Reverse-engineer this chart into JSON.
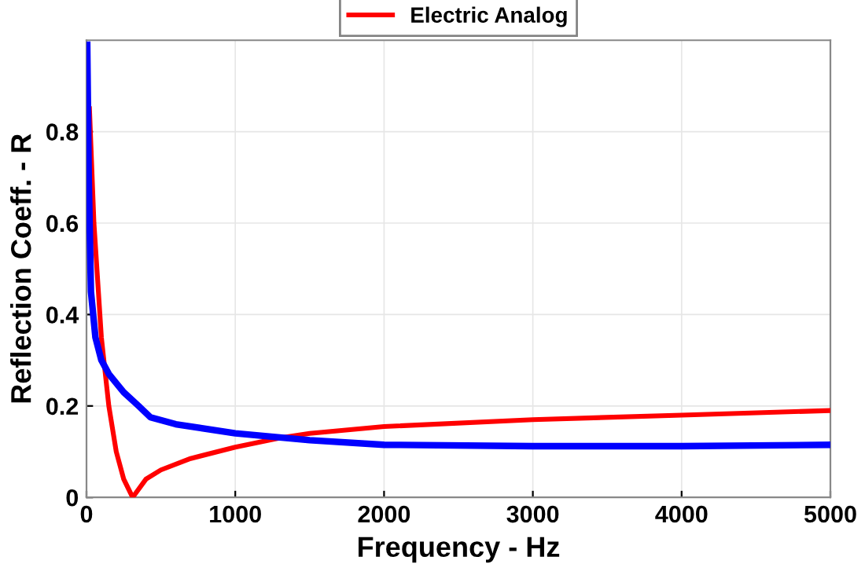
{
  "chart_data": {
    "type": "line",
    "xlabel": "Frequency - Hz",
    "ylabel": "Reflection Coeff. - R",
    "xlim": [
      0,
      5000
    ],
    "xticks": [
      0,
      1000,
      2000,
      3000,
      4000,
      5000
    ],
    "ylim": [
      0,
      1
    ],
    "yticks": [
      0,
      0.2,
      0.4,
      0.6,
      0.8
    ],
    "grid": true,
    "legend": "top",
    "series": [
      {
        "name": "Electric Analog",
        "color": "#ff0000",
        "x": [
          20,
          50,
          100,
          150,
          200,
          250,
          310,
          400,
          500,
          700,
          1000,
          1300,
          1500,
          2000,
          3000,
          4000,
          5000
        ],
        "values": [
          0.85,
          0.6,
          0.35,
          0.2,
          0.1,
          0.04,
          0,
          0.04,
          0.06,
          0.085,
          0.11,
          0.13,
          0.14,
          0.155,
          0.17,
          0.18,
          0.19
        ]
      },
      {
        "color": "#0000ff",
        "x": [
          5,
          15,
          30,
          60,
          100,
          150,
          250,
          350,
          430,
          600,
          1000,
          1500,
          2000,
          3000,
          4000,
          5000
        ],
        "values": [
          0.99,
          0.7,
          0.45,
          0.35,
          0.3,
          0.27,
          0.23,
          0.2,
          0.175,
          0.16,
          0.14,
          0.125,
          0.115,
          0.112,
          0.112,
          0.115
        ]
      }
    ]
  }
}
